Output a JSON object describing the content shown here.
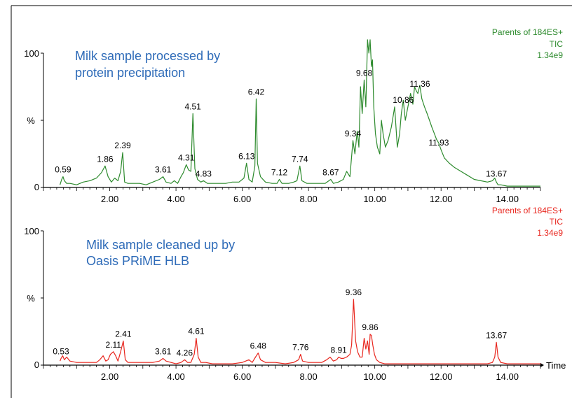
{
  "chart_data": [
    {
      "type": "line",
      "title": "Milk sample processed by protein precipitation",
      "title_lines": [
        "Milk sample processed by",
        "protein precipitation"
      ],
      "title_color": "#2e6bb8",
      "info": [
        "Parents of 184ES+",
        "TIC",
        "1.34e9"
      ],
      "color": "#2e8b2e",
      "xlim": [
        0,
        15
      ],
      "ylim": [
        0,
        100
      ],
      "xticks": [
        "2.00",
        "4.00",
        "6.00",
        "8.00",
        "10.00",
        "12.00",
        "14.00"
      ],
      "ytick_top": "100",
      "ytick_bottom": "0",
      "ylabel": "%",
      "xlabel": "",
      "x": [
        0.5,
        0.55,
        0.59,
        0.63,
        0.7,
        0.8,
        1.0,
        1.2,
        1.4,
        1.6,
        1.75,
        1.86,
        1.95,
        2.05,
        2.15,
        2.25,
        2.33,
        2.39,
        2.45,
        2.55,
        2.7,
        2.9,
        3.1,
        3.3,
        3.5,
        3.61,
        3.7,
        3.85,
        3.95,
        4.05,
        4.15,
        4.22,
        4.31,
        4.38,
        4.45,
        4.51,
        4.57,
        4.65,
        4.75,
        4.83,
        4.95,
        5.1,
        5.3,
        5.5,
        5.7,
        5.9,
        6.05,
        6.13,
        6.2,
        6.3,
        6.38,
        6.42,
        6.46,
        6.55,
        6.7,
        6.9,
        7.05,
        7.12,
        7.2,
        7.4,
        7.55,
        7.65,
        7.74,
        7.8,
        7.95,
        8.1,
        8.3,
        8.5,
        8.67,
        8.75,
        8.9,
        9.05,
        9.15,
        9.25,
        9.34,
        9.4,
        9.47,
        9.52,
        9.57,
        9.62,
        9.68,
        9.73,
        9.78,
        9.82,
        9.86,
        9.9,
        9.93,
        9.97,
        10.02,
        10.08,
        10.15,
        10.2,
        10.25,
        10.32,
        10.4,
        10.5,
        10.6,
        10.68,
        10.75,
        10.8,
        10.86,
        10.92,
        11.0,
        11.08,
        11.15,
        11.2,
        11.25,
        11.3,
        11.36,
        11.42,
        11.5,
        11.58,
        11.65,
        11.72,
        11.8,
        11.86,
        11.93,
        12.0,
        12.1,
        12.25,
        12.4,
        12.6,
        12.8,
        13.0,
        13.2,
        13.4,
        13.55,
        13.62,
        13.67,
        13.72,
        13.8,
        14.0,
        14.5,
        15.0
      ],
      "y": [
        2,
        6,
        8,
        5,
        3,
        3,
        2,
        4,
        5,
        7,
        11,
        16,
        8,
        4,
        7,
        5,
        12,
        26,
        4,
        3,
        3,
        3,
        2,
        4,
        6,
        8,
        4,
        3,
        5,
        3,
        8,
        11,
        17,
        13,
        12,
        55,
        14,
        6,
        4,
        5,
        3,
        3,
        3,
        3,
        4,
        4,
        7,
        18,
        6,
        4,
        16,
        66,
        18,
        8,
        4,
        3,
        3,
        6,
        3,
        3,
        4,
        5,
        16,
        5,
        3,
        3,
        3,
        3,
        6,
        3,
        4,
        6,
        12,
        8,
        35,
        25,
        42,
        30,
        75,
        55,
        80,
        60,
        110,
        100,
        120,
        90,
        95,
        60,
        40,
        30,
        25,
        50,
        40,
        30,
        35,
        45,
        60,
        30,
        40,
        55,
        65,
        50,
        60,
        70,
        62,
        75,
        72,
        70,
        76,
        66,
        60,
        55,
        50,
        45,
        40,
        36,
        33,
        28,
        22,
        18,
        15,
        12,
        9,
        6,
        5,
        4,
        5,
        7,
        4,
        2,
        2,
        1,
        1,
        1
      ],
      "peak_labels": [
        {
          "x": 0.59,
          "y": 8,
          "label": "0.59"
        },
        {
          "x": 1.86,
          "y": 16,
          "label": "1.86"
        },
        {
          "x": 2.39,
          "y": 26,
          "label": "2.39"
        },
        {
          "x": 3.61,
          "y": 8,
          "label": "3.61"
        },
        {
          "x": 4.31,
          "y": 17,
          "label": "4.31"
        },
        {
          "x": 4.51,
          "y": 55,
          "label": "4.51"
        },
        {
          "x": 4.83,
          "y": 5,
          "label": "4.83"
        },
        {
          "x": 6.13,
          "y": 18,
          "label": "6.13"
        },
        {
          "x": 6.42,
          "y": 66,
          "label": "6.42"
        },
        {
          "x": 7.12,
          "y": 6,
          "label": "7.12"
        },
        {
          "x": 7.74,
          "y": 16,
          "label": "7.74"
        },
        {
          "x": 8.67,
          "y": 6,
          "label": "8.67"
        },
        {
          "x": 9.34,
          "y": 35,
          "label": "9.34"
        },
        {
          "x": 9.68,
          "y": 80,
          "label": "9.68"
        },
        {
          "x": 10.86,
          "y": 60,
          "label": "10.86"
        },
        {
          "x": 11.36,
          "y": 72,
          "label": "11.36"
        },
        {
          "x": 11.93,
          "y": 28,
          "label": "11.93"
        },
        {
          "x": 13.67,
          "y": 5,
          "label": "13.67"
        }
      ]
    },
    {
      "type": "line",
      "title": "Milk sample cleaned up by Oasis PRiME HLB",
      "title_lines": [
        "Milk sample cleaned up by",
        "Oasis PRiME HLB"
      ],
      "title_color": "#2e6bb8",
      "info": [
        "Parents of 184ES+",
        "TIC",
        "1.34e9"
      ],
      "color": "#e8261e",
      "xlim": [
        0,
        15
      ],
      "ylim": [
        0,
        100
      ],
      "xticks": [
        "2.00",
        "4.00",
        "6.00",
        "8.00",
        "10.00",
        "12.00",
        "14.00"
      ],
      "ytick_top": "100",
      "ytick_bottom": "0",
      "ylabel": "%",
      "xlabel": "Time",
      "x": [
        0.5,
        0.53,
        0.58,
        0.63,
        0.7,
        0.8,
        1.0,
        1.2,
        1.4,
        1.6,
        1.7,
        1.8,
        1.88,
        1.95,
        2.02,
        2.11,
        2.18,
        2.25,
        2.33,
        2.41,
        2.47,
        2.55,
        2.7,
        2.9,
        3.1,
        3.3,
        3.5,
        3.61,
        3.7,
        3.85,
        4.0,
        4.15,
        4.26,
        4.35,
        4.45,
        4.55,
        4.61,
        4.67,
        4.75,
        4.9,
        5.1,
        5.4,
        5.7,
        6.0,
        6.2,
        6.3,
        6.4,
        6.48,
        6.55,
        6.7,
        7.0,
        7.3,
        7.55,
        7.7,
        7.76,
        7.82,
        8.0,
        8.2,
        8.4,
        8.55,
        8.65,
        8.75,
        8.85,
        8.91,
        8.98,
        9.05,
        9.15,
        9.25,
        9.3,
        9.36,
        9.42,
        9.48,
        9.55,
        9.62,
        9.68,
        9.73,
        9.78,
        9.83,
        9.86,
        9.9,
        9.94,
        9.99,
        10.05,
        10.15,
        10.3,
        10.5,
        10.7,
        11.0,
        11.5,
        12.0,
        12.5,
        13.0,
        13.4,
        13.55,
        13.62,
        13.67,
        13.72,
        13.8,
        14.0,
        14.5,
        15.0
      ],
      "y": [
        3,
        5,
        7,
        4,
        6,
        3,
        2,
        2,
        2,
        2,
        4,
        7,
        3,
        4,
        8,
        10,
        7,
        3,
        10,
        18,
        4,
        2,
        2,
        2,
        2,
        2,
        3,
        5,
        3,
        2,
        1,
        2,
        4,
        2,
        2,
        8,
        20,
        6,
        2,
        2,
        1,
        1,
        1,
        2,
        4,
        2,
        6,
        9,
        4,
        2,
        2,
        1,
        2,
        4,
        8,
        3,
        2,
        2,
        2,
        4,
        6,
        3,
        4,
        6,
        5,
        5,
        6,
        8,
        15,
        49,
        18,
        10,
        6,
        6,
        20,
        12,
        18,
        8,
        23,
        22,
        15,
        8,
        4,
        2,
        1,
        1,
        1,
        1,
        1,
        1,
        1,
        1,
        1,
        2,
        6,
        17,
        6,
        2,
        1,
        1,
        1
      ],
      "peak_labels": [
        {
          "x": 0.53,
          "y": 5,
          "label": "0.53"
        },
        {
          "x": 2.11,
          "y": 10,
          "label": "2.11"
        },
        {
          "x": 2.41,
          "y": 18,
          "label": "2.41"
        },
        {
          "x": 3.61,
          "y": 5,
          "label": "3.61"
        },
        {
          "x": 4.26,
          "y": 4,
          "label": "4.26"
        },
        {
          "x": 4.61,
          "y": 20,
          "label": "4.61"
        },
        {
          "x": 6.48,
          "y": 9,
          "label": "6.48"
        },
        {
          "x": 7.76,
          "y": 8,
          "label": "7.76"
        },
        {
          "x": 8.91,
          "y": 6,
          "label": "8.91"
        },
        {
          "x": 9.36,
          "y": 49,
          "label": "9.36"
        },
        {
          "x": 9.86,
          "y": 23,
          "label": "9.86"
        },
        {
          "x": 13.67,
          "y": 17,
          "label": "13.67"
        }
      ]
    }
  ]
}
